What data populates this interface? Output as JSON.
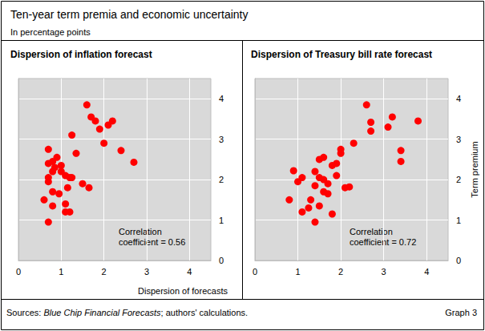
{
  "title": "Ten-year term premia and economic uncertainty",
  "subtitle": "In percentage points",
  "x_label": "Dispersion of forecasts",
  "source": {
    "text": "Sources: Blue Chip Financial Forecasts; authors' calculations.",
    "italic": "Blue Chip Financial Forecasts"
  },
  "graph_label": "Graph 3",
  "chart_data": [
    {
      "type": "scatter",
      "title": "Dispersion of inflation forecast",
      "annotation": [
        "Correlation",
        "coefficient = 0.56"
      ],
      "color": "#ff0000",
      "marker": "circle",
      "x": [
        1.6,
        1.7,
        1.8,
        1.9,
        2.1,
        2.2,
        2.0,
        2.4,
        2.7,
        1.35,
        1.25,
        0.7,
        0.8,
        0.7,
        0.9,
        0.85,
        1.0,
        1.0,
        0.8,
        1.1,
        1.2,
        1.25,
        0.7,
        0.7,
        1.5,
        1.65,
        1.15,
        0.95,
        0.8,
        0.6,
        0.8,
        1.1,
        1.1,
        1.2,
        0.7
      ],
      "values": [
        3.85,
        3.55,
        3.45,
        3.25,
        3.35,
        3.45,
        2.9,
        2.72,
        2.43,
        2.65,
        3.1,
        2.75,
        2.45,
        2.4,
        2.55,
        2.3,
        2.35,
        2.2,
        2.2,
        2.1,
        2.05,
        2.05,
        2.05,
        1.95,
        1.9,
        1.8,
        1.8,
        1.65,
        1.7,
        1.5,
        1.35,
        1.4,
        1.2,
        1.2,
        0.95
      ],
      "xlim": [
        0,
        4.5
      ],
      "ylim": [
        0,
        4.5
      ],
      "xticks": [
        0,
        1,
        2,
        3,
        4
      ],
      "yticks": [
        0,
        1,
        2,
        3,
        4
      ],
      "grid": true
    },
    {
      "type": "scatter",
      "title": "Dispersion of Treasury bill rate forecast",
      "annotation": [
        "Correlation",
        "coefficient = 0.72"
      ],
      "y_label": "Term premium",
      "color": "#ff0000",
      "marker": "circle",
      "x": [
        2.6,
        3.2,
        3.8,
        2.7,
        3.1,
        2.7,
        2.3,
        2.0,
        2.0,
        3.4,
        3.4,
        1.6,
        1.5,
        1.4,
        0.9,
        1.1,
        1.0,
        1.5,
        1.6,
        1.8,
        1.9,
        1.9,
        1.7,
        1.4,
        2.1,
        2.2,
        1.6,
        1.7,
        0.8,
        1.3,
        1.5,
        1.1,
        1.8,
        1.4,
        1.25
      ],
      "values": [
        3.85,
        3.55,
        3.45,
        3.42,
        3.3,
        3.2,
        2.9,
        2.75,
        2.65,
        2.72,
        2.45,
        2.55,
        2.5,
        2.2,
        2.22,
        2.05,
        1.95,
        2.05,
        2.0,
        2.35,
        2.4,
        2.1,
        1.9,
        1.85,
        1.8,
        1.82,
        1.7,
        1.65,
        1.5,
        1.5,
        1.35,
        1.2,
        1.15,
        0.95,
        1.3
      ],
      "xlim": [
        0,
        4.5
      ],
      "ylim": [
        0,
        4.5
      ],
      "xticks": [
        0,
        1,
        2,
        3,
        4
      ],
      "yticks": [
        0,
        1,
        2,
        3,
        4
      ],
      "grid": true
    }
  ]
}
